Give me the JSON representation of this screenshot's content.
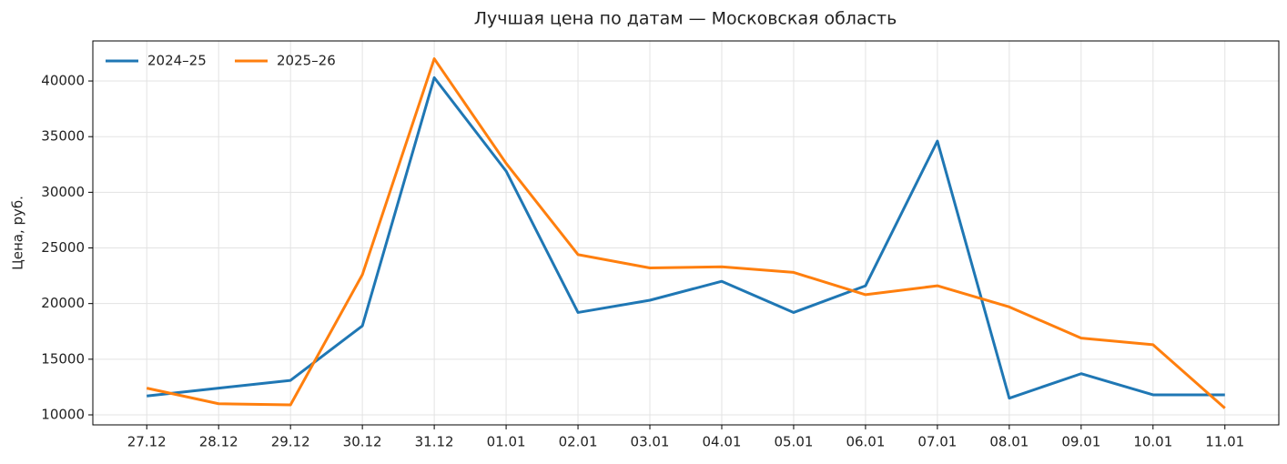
{
  "chart_data": {
    "type": "line",
    "title": "Лучшая цена по датам — Московская область",
    "y_label": "Цена, руб.",
    "categories": [
      "27.12",
      "28.12",
      "29.12",
      "30.12",
      "31.12",
      "01.01",
      "02.01",
      "03.01",
      "04.01",
      "05.01",
      "06.01",
      "07.01",
      "08.01",
      "09.01",
      "10.01",
      "11.01"
    ],
    "series": [
      {
        "name": "2024–25",
        "color": "#1f77b4",
        "values": [
          11700,
          12400,
          13100,
          18000,
          40300,
          31900,
          19200,
          20300,
          22000,
          19200,
          21600,
          34600,
          11500,
          13700,
          11800,
          11800
        ]
      },
      {
        "name": "2025–26",
        "color": "#ff7f0e",
        "values": [
          12400,
          11000,
          10900,
          22600,
          42000,
          32600,
          24400,
          23200,
          23300,
          22800,
          20800,
          21600,
          19700,
          16900,
          16300,
          10600
        ]
      }
    ],
    "ylim": [
      9100,
      43600
    ],
    "yticks": [
      10000,
      15000,
      20000,
      25000,
      30000,
      35000,
      40000
    ],
    "grid": true,
    "legend": "upper left"
  }
}
